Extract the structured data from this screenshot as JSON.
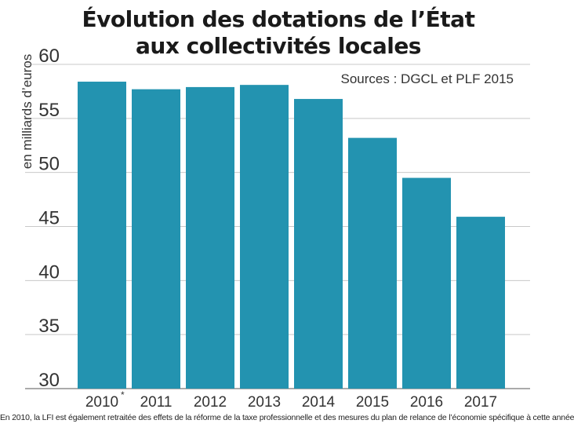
{
  "title_lines": [
    "Évolution des dotations de l’État",
    "aux collectivités locales"
  ],
  "source": "Sources : DGCL et PLF 2015",
  "footnote": "En 2010, la LFI est également retraitée des effets de la réforme de la taxe professionnelle et des mesures du plan de relance de l’économie spécifique à cette année",
  "colors": {
    "bar": "#2393b0",
    "grid": "#c8c8c8",
    "axis": "#555555",
    "text": "#333333"
  },
  "chart_data": {
    "type": "bar",
    "ylabel": "en milliards d’euros",
    "xlabel": "",
    "categories": [
      "2010",
      "2011",
      "2012",
      "2013",
      "2014",
      "2015",
      "2016",
      "2017"
    ],
    "category_markers": [
      "*",
      "",
      "",
      "",
      "",
      "",
      "",
      ""
    ],
    "values": [
      58.4,
      57.7,
      57.9,
      58.1,
      56.8,
      53.2,
      49.5,
      45.9
    ],
    "ylim": [
      30,
      60
    ],
    "yticks": [
      30,
      35,
      40,
      45,
      50,
      55,
      60
    ],
    "grid": true,
    "legend": "none"
  }
}
